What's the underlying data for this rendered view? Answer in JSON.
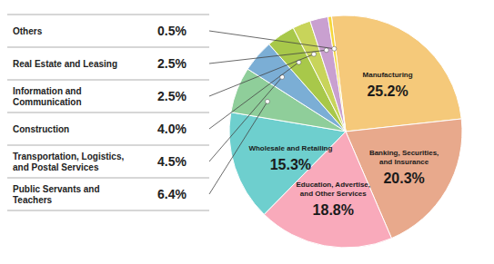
{
  "chart_data": {
    "type": "pie",
    "categories": [
      "Manufacturing",
      "Banking, Securities,\nand Insurance",
      "Education, Advertise,\nand Other Services",
      "Wholesale and Retailing",
      "Public Servants and\nTeachers",
      "Transportation, Logistics,\nand Postal Services",
      "Construction",
      "Information and\nCommunication",
      "Real Estate and Leasing",
      "Others"
    ],
    "values": [
      25.2,
      20.3,
      18.8,
      15.3,
      6.4,
      4.5,
      4.0,
      2.5,
      2.5,
      0.5
    ],
    "value_labels": [
      "25.2%",
      "20.3%",
      "18.8%",
      "15.3%",
      "6.4%",
      "4.5%",
      "4.0%",
      "2.5%",
      "2.5%",
      "0.5%"
    ],
    "colors": [
      "#F5C97A",
      "#E8A98C",
      "#F9AABB",
      "#6ECFCE",
      "#8FCE9A",
      "#7BAED5",
      "#A8C84A",
      "#C8D45A",
      "#C9A0D0",
      "#F5D73A"
    ],
    "data_labels": true
  }
}
